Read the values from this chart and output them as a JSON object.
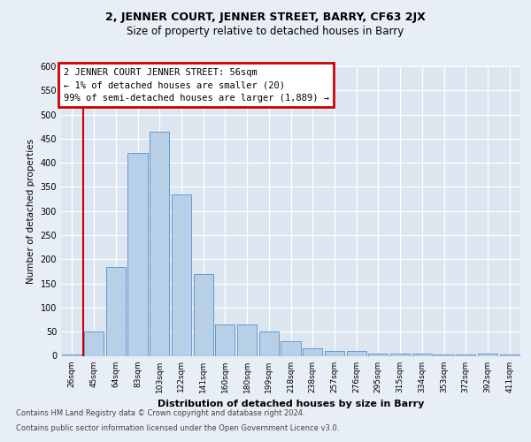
{
  "title1": "2, JENNER COURT, JENNER STREET, BARRY, CF63 2JX",
  "title2": "Size of property relative to detached houses in Barry",
  "xlabel": "Distribution of detached houses by size in Barry",
  "ylabel": "Number of detached properties",
  "categories": [
    "26sqm",
    "45sqm",
    "64sqm",
    "83sqm",
    "103sqm",
    "122sqm",
    "141sqm",
    "160sqm",
    "180sqm",
    "199sqm",
    "218sqm",
    "238sqm",
    "257sqm",
    "276sqm",
    "295sqm",
    "315sqm",
    "334sqm",
    "353sqm",
    "372sqm",
    "392sqm",
    "411sqm"
  ],
  "values": [
    3,
    50,
    185,
    420,
    465,
    335,
    170,
    65,
    65,
    50,
    30,
    15,
    10,
    10,
    5,
    5,
    5,
    2,
    2,
    5,
    3
  ],
  "bar_color": "#b8cfe8",
  "bar_edge_color": "#6699cc",
  "vline_x": 0.5,
  "vline_color": "#cc0000",
  "annotation_line1": "2 JENNER COURT JENNER STREET: 56sqm",
  "annotation_line2": "← 1% of detached houses are smaller (20)",
  "annotation_line3": "99% of semi-detached houses are larger (1,889) →",
  "annotation_box_facecolor": "#ffffff",
  "annotation_box_edgecolor": "#cc0000",
  "ylim": [
    0,
    600
  ],
  "yticks": [
    0,
    50,
    100,
    150,
    200,
    250,
    300,
    350,
    400,
    450,
    500,
    550,
    600
  ],
  "footer1": "Contains HM Land Registry data © Crown copyright and database right 2024.",
  "footer2": "Contains public sector information licensed under the Open Government Licence v3.0.",
  "fig_facecolor": "#e8eef5",
  "axes_facecolor": "#dce5f0",
  "title1_fontsize": 9,
  "title2_fontsize": 8.5,
  "ylabel_fontsize": 7.5,
  "xlabel_fontsize": 8,
  "tick_fontsize": 7,
  "xtick_fontsize": 6.5,
  "footer_fontsize": 6,
  "annotation_fontsize": 7.5
}
